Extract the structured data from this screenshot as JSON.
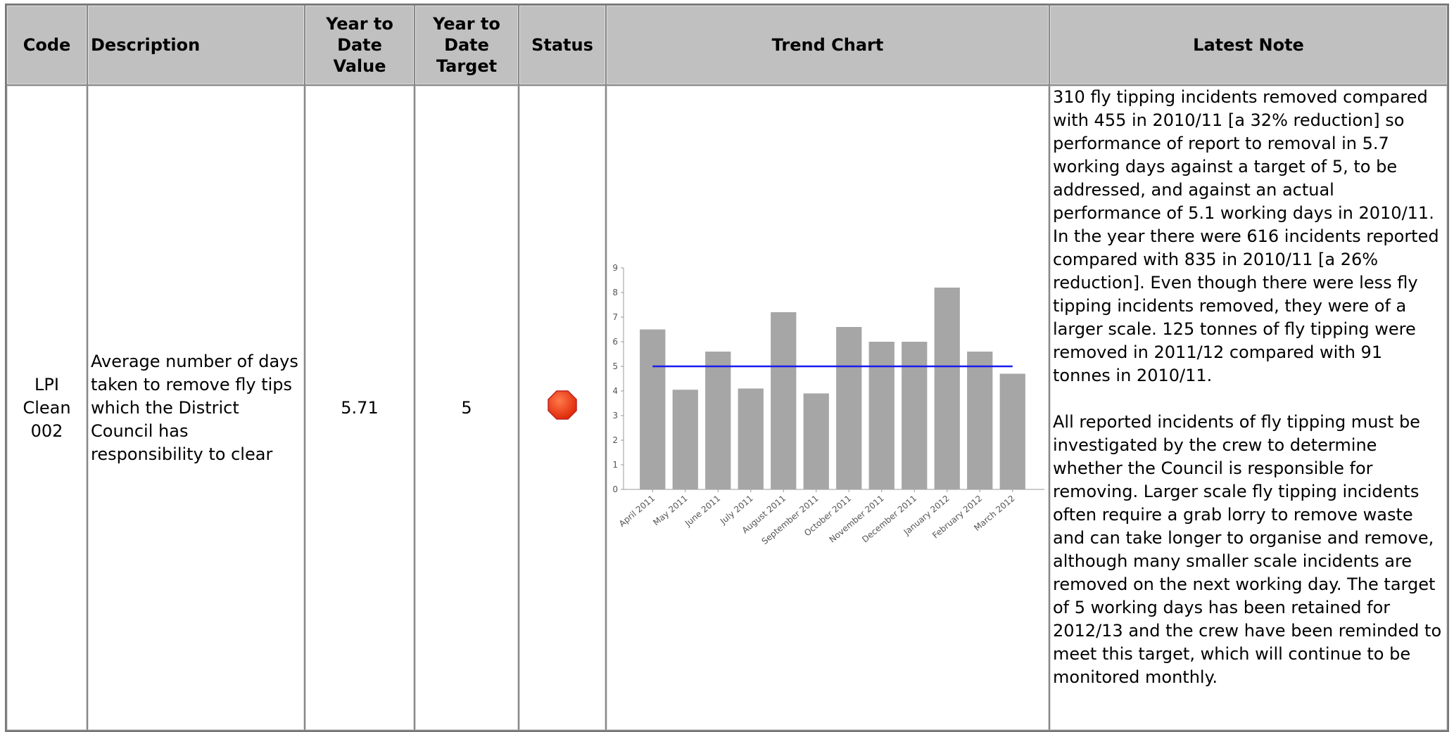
{
  "table": {
    "headers": [
      "Code",
      "Description",
      "Year to Date Value",
      "Year to Date Target",
      "Status",
      "Trend Chart",
      "Latest Note"
    ],
    "rows": [
      [
        "LPI Clean 002",
        "Average number of days taken to remove fly tips which the District Council has responsibility to clear",
        "5.71",
        "5"
      ]
    ],
    "note": [
      "310 fly tipping incidents removed compared with 455 in 2010/11 [a 32% reduction] so performance of report to removal in 5.7 working days against a target of 5, to be addressed, and against an actual performance of 5.1 working days in 2010/11.  In the year there were 616 incidents reported compared with 835 in 2010/11 [a 26% reduction]. Even though there were less fly tipping incidents removed, they were of a larger scale. 125 tonnes of fly tipping were removed in 2011/12 compared with 91 tonnes in 2010/11.",
      "All reported incidents of fly tipping must be investigated by the crew to determine whether the Council is responsible for removing. Larger scale fly tipping incidents often require a grab lorry to remove waste and can take longer to organise and remove, although many smaller scale incidents are removed on the next working day. The target of 5 working days has been retained for 2012/13 and the crew have been reminded to meet this target, which will continue to be monitored monthly."
    ]
  },
  "chart_data": {
    "type": "bar",
    "categories": [
      "April 2011",
      "May 2011",
      "June 2011",
      "July 2011",
      "August 2011",
      "September 2011",
      "October 2011",
      "November 2011",
      "December 2011",
      "January 2012",
      "February 2012",
      "March 2012"
    ],
    "values": [
      6.5,
      4.05,
      5.6,
      4.1,
      7.2,
      3.9,
      6.6,
      6.0,
      6.0,
      8.2,
      5.6,
      4.7
    ],
    "color": "#a6a6a6",
    "target": 5,
    "target_color": "#1a1aee",
    "ylim": [
      0,
      9
    ],
    "yticks": [
      0,
      1,
      2,
      3,
      4,
      5,
      6,
      7,
      8,
      9
    ]
  }
}
